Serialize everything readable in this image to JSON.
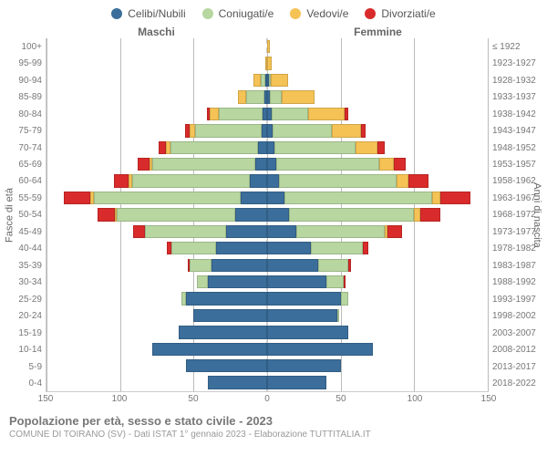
{
  "legend": {
    "items": [
      {
        "label": "Celibi/Nubili",
        "color": "#3b6e9a"
      },
      {
        "label": "Coniugati/e",
        "color": "#b7d6a0"
      },
      {
        "label": "Vedovi/e",
        "color": "#f5c255"
      },
      {
        "label": "Divorziati/e",
        "color": "#d92b2b"
      }
    ]
  },
  "headers": {
    "male": "Maschi",
    "female": "Femmine"
  },
  "axis_left_label": "Fasce di età",
  "axis_right_label": "Anni di nascita",
  "x_max": 150,
  "x_ticks": [
    150,
    100,
    50,
    0,
    50,
    100,
    150
  ],
  "colors": {
    "single": "#3b6e9a",
    "married": "#b7d6a0",
    "widowed": "#f5c255",
    "divorced": "#d92b2b",
    "grid": "#bbbbbb",
    "background": "#ffffff"
  },
  "rows": [
    {
      "age": "100+",
      "birth": "≤ 1922",
      "m": {
        "single": 0,
        "married": 0,
        "widowed": 0,
        "divorced": 0
      },
      "f": {
        "single": 0,
        "married": 0,
        "widowed": 2,
        "divorced": 0
      }
    },
    {
      "age": "95-99",
      "birth": "1923-1927",
      "m": {
        "single": 0,
        "married": 0,
        "widowed": 1,
        "divorced": 0
      },
      "f": {
        "single": 0,
        "married": 0,
        "widowed": 3,
        "divorced": 0
      }
    },
    {
      "age": "90-94",
      "birth": "1928-1932",
      "m": {
        "single": 1,
        "married": 3,
        "widowed": 5,
        "divorced": 0
      },
      "f": {
        "single": 1,
        "married": 1,
        "widowed": 12,
        "divorced": 0
      }
    },
    {
      "age": "85-89",
      "birth": "1933-1937",
      "m": {
        "single": 2,
        "married": 12,
        "widowed": 6,
        "divorced": 0
      },
      "f": {
        "single": 2,
        "married": 8,
        "widowed": 22,
        "divorced": 0
      }
    },
    {
      "age": "80-84",
      "birth": "1938-1942",
      "m": {
        "single": 3,
        "married": 30,
        "widowed": 6,
        "divorced": 2
      },
      "f": {
        "single": 3,
        "married": 25,
        "widowed": 25,
        "divorced": 2
      }
    },
    {
      "age": "75-79",
      "birth": "1943-1947",
      "m": {
        "single": 4,
        "married": 45,
        "widowed": 4,
        "divorced": 3
      },
      "f": {
        "single": 4,
        "married": 40,
        "widowed": 20,
        "divorced": 3
      }
    },
    {
      "age": "70-74",
      "birth": "1948-1952",
      "m": {
        "single": 6,
        "married": 60,
        "widowed": 3,
        "divorced": 5
      },
      "f": {
        "single": 5,
        "married": 55,
        "widowed": 15,
        "divorced": 5
      }
    },
    {
      "age": "65-69",
      "birth": "1953-1957",
      "m": {
        "single": 8,
        "married": 70,
        "widowed": 2,
        "divorced": 8
      },
      "f": {
        "single": 6,
        "married": 70,
        "widowed": 10,
        "divorced": 8
      }
    },
    {
      "age": "60-64",
      "birth": "1958-1962",
      "m": {
        "single": 12,
        "married": 80,
        "widowed": 2,
        "divorced": 10
      },
      "f": {
        "single": 8,
        "married": 80,
        "widowed": 8,
        "divorced": 14
      }
    },
    {
      "age": "55-59",
      "birth": "1963-1967",
      "m": {
        "single": 18,
        "married": 100,
        "widowed": 2,
        "divorced": 18
      },
      "f": {
        "single": 12,
        "married": 100,
        "widowed": 6,
        "divorced": 20
      }
    },
    {
      "age": "50-54",
      "birth": "1968-1972",
      "m": {
        "single": 22,
        "married": 80,
        "widowed": 1,
        "divorced": 12
      },
      "f": {
        "single": 15,
        "married": 85,
        "widowed": 4,
        "divorced": 14
      }
    },
    {
      "age": "45-49",
      "birth": "1973-1977",
      "m": {
        "single": 28,
        "married": 55,
        "widowed": 0,
        "divorced": 8
      },
      "f": {
        "single": 20,
        "married": 60,
        "widowed": 2,
        "divorced": 10
      }
    },
    {
      "age": "40-44",
      "birth": "1978-1982",
      "m": {
        "single": 35,
        "married": 30,
        "widowed": 0,
        "divorced": 3
      },
      "f": {
        "single": 30,
        "married": 35,
        "widowed": 0,
        "divorced": 4
      }
    },
    {
      "age": "35-39",
      "birth": "1983-1987",
      "m": {
        "single": 38,
        "married": 15,
        "widowed": 0,
        "divorced": 1
      },
      "f": {
        "single": 35,
        "married": 20,
        "widowed": 0,
        "divorced": 2
      }
    },
    {
      "age": "30-34",
      "birth": "1988-1992",
      "m": {
        "single": 40,
        "married": 8,
        "widowed": 0,
        "divorced": 0
      },
      "f": {
        "single": 40,
        "married": 12,
        "widowed": 0,
        "divorced": 1
      }
    },
    {
      "age": "25-29",
      "birth": "1993-1997",
      "m": {
        "single": 55,
        "married": 3,
        "widowed": 0,
        "divorced": 0
      },
      "f": {
        "single": 50,
        "married": 5,
        "widowed": 0,
        "divorced": 0
      }
    },
    {
      "age": "20-24",
      "birth": "1998-2002",
      "m": {
        "single": 50,
        "married": 0,
        "widowed": 0,
        "divorced": 0
      },
      "f": {
        "single": 48,
        "married": 1,
        "widowed": 0,
        "divorced": 0
      }
    },
    {
      "age": "15-19",
      "birth": "2003-2007",
      "m": {
        "single": 60,
        "married": 0,
        "widowed": 0,
        "divorced": 0
      },
      "f": {
        "single": 55,
        "married": 0,
        "widowed": 0,
        "divorced": 0
      }
    },
    {
      "age": "10-14",
      "birth": "2008-2012",
      "m": {
        "single": 78,
        "married": 0,
        "widowed": 0,
        "divorced": 0
      },
      "f": {
        "single": 72,
        "married": 0,
        "widowed": 0,
        "divorced": 0
      }
    },
    {
      "age": "5-9",
      "birth": "2013-2017",
      "m": {
        "single": 55,
        "married": 0,
        "widowed": 0,
        "divorced": 0
      },
      "f": {
        "single": 50,
        "married": 0,
        "widowed": 0,
        "divorced": 0
      }
    },
    {
      "age": "0-4",
      "birth": "2018-2022",
      "m": {
        "single": 40,
        "married": 0,
        "widowed": 0,
        "divorced": 0
      },
      "f": {
        "single": 40,
        "married": 0,
        "widowed": 0,
        "divorced": 0
      }
    }
  ],
  "caption": {
    "title": "Popolazione per età, sesso e stato civile - 2023",
    "sub": "COMUNE DI TOIRANO (SV) - Dati ISTAT 1° gennaio 2023 - Elaborazione TUTTITALIA.IT"
  }
}
